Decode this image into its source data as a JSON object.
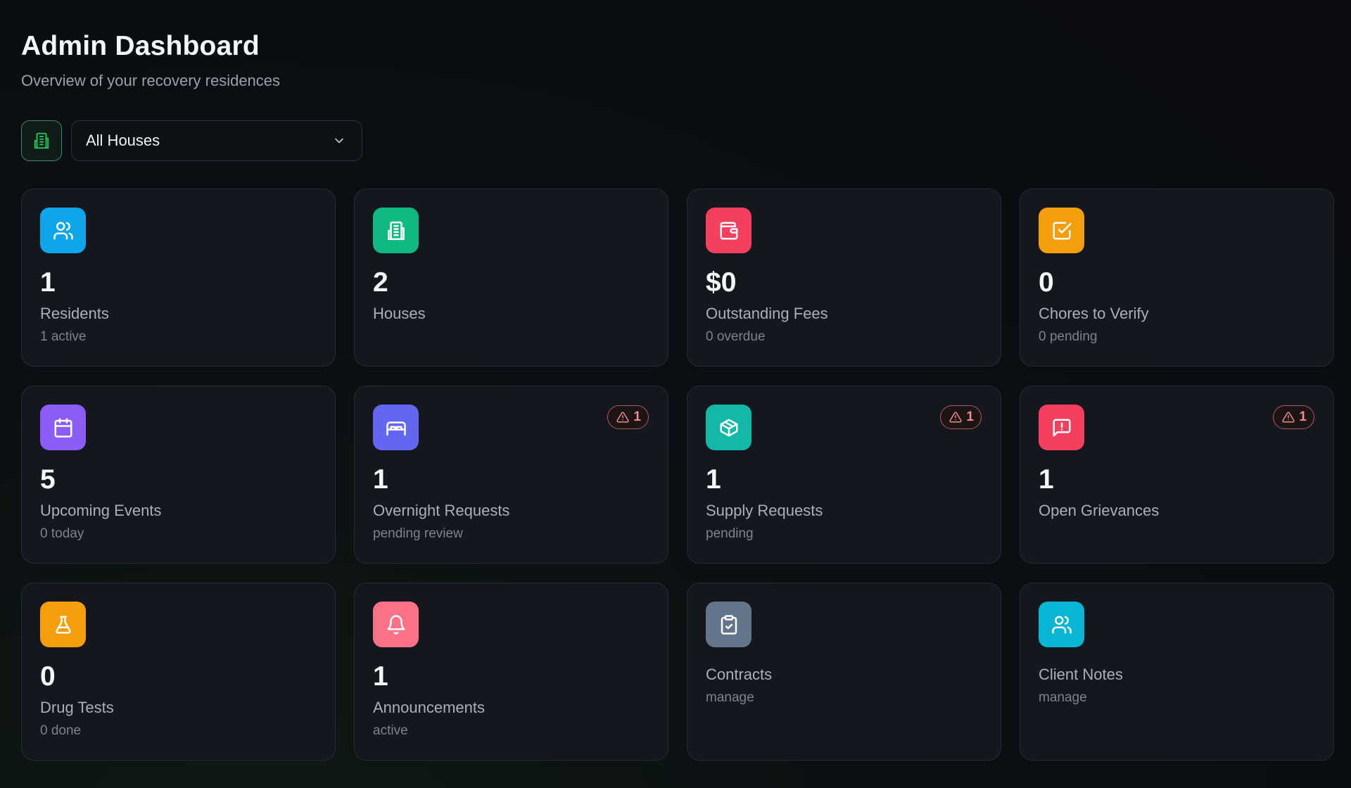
{
  "header": {
    "title": "Admin Dashboard",
    "subtitle": "Overview of your recovery residences"
  },
  "filter": {
    "house_icon": "building-icon",
    "selected": "All Houses"
  },
  "cards": [
    {
      "id": "residents",
      "icon": "users-icon",
      "color": "#0ea5e9",
      "value": "1",
      "label": "Residents",
      "sub": "1 active"
    },
    {
      "id": "houses",
      "icon": "building-icon",
      "color": "#10b981",
      "value": "2",
      "label": "Houses",
      "sub": ""
    },
    {
      "id": "fees",
      "icon": "wallet-icon",
      "color": "#f43f5e",
      "value": "$0",
      "label": "Outstanding Fees",
      "sub": "0 overdue"
    },
    {
      "id": "chores",
      "icon": "check-square-icon",
      "color": "#f59e0b",
      "value": "0",
      "label": "Chores to Verify",
      "sub": "0 pending"
    },
    {
      "id": "events",
      "icon": "calendar-icon",
      "color": "#8b5cf6",
      "value": "5",
      "label": "Upcoming Events",
      "sub": "0 today"
    },
    {
      "id": "overnight",
      "icon": "bed-icon",
      "color": "#6366f1",
      "value": "1",
      "label": "Overnight Requests",
      "sub": "pending review",
      "badge": "1"
    },
    {
      "id": "supply",
      "icon": "package-icon",
      "color": "#14b8a6",
      "value": "1",
      "label": "Supply Requests",
      "sub": "pending",
      "badge": "1"
    },
    {
      "id": "grievances",
      "icon": "message-alert-icon",
      "color": "#f43f5e",
      "value": "1",
      "label": "Open Grievances",
      "sub": "",
      "badge": "1"
    },
    {
      "id": "drugtests",
      "icon": "flask-icon",
      "color": "#f59e0b",
      "value": "0",
      "label": "Drug Tests",
      "sub": "0 done"
    },
    {
      "id": "announcements",
      "icon": "bell-icon",
      "color": "#fb7185",
      "value": "1",
      "label": "Announcements",
      "sub": "active"
    },
    {
      "id": "contracts",
      "icon": "clipboard-check-icon",
      "color": "#64748b",
      "value": "",
      "label": "Contracts",
      "sub": "manage"
    },
    {
      "id": "notes",
      "icon": "users-icon",
      "color": "#06b6d4",
      "value": "",
      "label": "Client Notes",
      "sub": "manage"
    }
  ]
}
